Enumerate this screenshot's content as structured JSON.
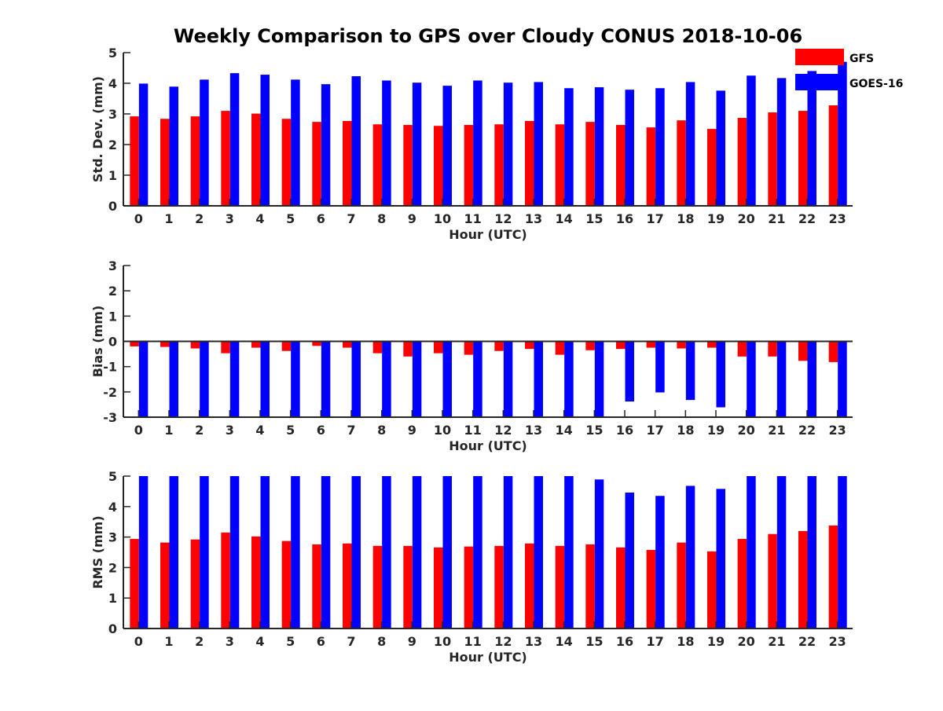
{
  "title": "Weekly Comparison to GPS over Cloudy CONUS 2018-10-06",
  "colors": {
    "GFS": "#ff0000",
    "GOES-16": "#0000ff",
    "axis": "#262626"
  },
  "legend": [
    {
      "name": "GFS",
      "color": "#ff0000"
    },
    {
      "name": "GOES-16",
      "color": "#0000ff"
    }
  ],
  "legend_placement": "top-right, outside the first panel",
  "chart_data": [
    {
      "type": "bar",
      "title": "Weekly Comparison to GPS over Cloudy CONUS 2018-10-06",
      "xlabel": "Hour (UTC)",
      "ylabel": "Std. Dev. (mm)",
      "ylim": [
        0,
        5
      ],
      "yticks": [
        0,
        1,
        2,
        3,
        4,
        5
      ],
      "grid": false,
      "categories": [
        "0",
        "1",
        "2",
        "3",
        "4",
        "5",
        "6",
        "7",
        "8",
        "9",
        "10",
        "11",
        "12",
        "13",
        "14",
        "15",
        "16",
        "17",
        "18",
        "19",
        "20",
        "21",
        "22",
        "23"
      ],
      "series": [
        {
          "name": "GFS",
          "color": "#ff0000",
          "values": [
            2.92,
            2.84,
            2.92,
            3.1,
            3.01,
            2.84,
            2.74,
            2.77,
            2.66,
            2.64,
            2.61,
            2.64,
            2.66,
            2.77,
            2.66,
            2.74,
            2.64,
            2.56,
            2.79,
            2.51,
            2.87,
            3.05,
            3.1,
            3.28
          ]
        },
        {
          "name": "GOES-16",
          "color": "#0000ff",
          "values": [
            3.99,
            3.89,
            4.12,
            4.33,
            4.28,
            4.12,
            3.97,
            4.23,
            4.09,
            4.02,
            3.92,
            4.09,
            4.02,
            4.04,
            3.84,
            3.87,
            3.79,
            3.84,
            4.04,
            3.76,
            4.25,
            4.17,
            4.4,
            4.7
          ]
        }
      ]
    },
    {
      "type": "bar",
      "xlabel": "Hour (UTC)",
      "ylabel": "Bias (mm)",
      "ylim": [
        -3,
        3
      ],
      "yticks": [
        -3,
        -2,
        -1,
        0,
        1,
        2,
        3
      ],
      "grid": false,
      "zero_line": true,
      "categories": [
        "0",
        "1",
        "2",
        "3",
        "4",
        "5",
        "6",
        "7",
        "8",
        "9",
        "10",
        "11",
        "12",
        "13",
        "14",
        "15",
        "16",
        "17",
        "18",
        "19",
        "20",
        "21",
        "22",
        "23"
      ],
      "series": [
        {
          "name": "GFS",
          "color": "#ff0000",
          "values": [
            -0.2,
            -0.22,
            -0.28,
            -0.47,
            -0.25,
            -0.38,
            -0.18,
            -0.25,
            -0.47,
            -0.6,
            -0.47,
            -0.53,
            -0.38,
            -0.3,
            -0.53,
            -0.35,
            -0.3,
            -0.25,
            -0.28,
            -0.25,
            -0.6,
            -0.6,
            -0.77,
            -0.82
          ]
        },
        {
          "name": "GOES-16",
          "color": "#0000ff",
          "values": [
            -3.0,
            -3.0,
            -3.0,
            -3.0,
            -3.0,
            -3.0,
            -3.0,
            -3.0,
            -3.0,
            -3.0,
            -3.0,
            -3.0,
            -3.0,
            -3.0,
            -3.0,
            -2.97,
            -2.38,
            -2.02,
            -2.32,
            -2.61,
            -3.0,
            -3.0,
            -3.0,
            -3.0
          ]
        }
      ]
    },
    {
      "type": "bar",
      "xlabel": "Hour (UTC)",
      "ylabel": "RMS (mm)",
      "ylim": [
        0,
        5
      ],
      "yticks": [
        0,
        1,
        2,
        3,
        4,
        5
      ],
      "grid": false,
      "categories": [
        "0",
        "1",
        "2",
        "3",
        "4",
        "5",
        "6",
        "7",
        "8",
        "9",
        "10",
        "11",
        "12",
        "13",
        "14",
        "15",
        "16",
        "17",
        "18",
        "19",
        "20",
        "21",
        "22",
        "23"
      ],
      "series": [
        {
          "name": "GFS",
          "color": "#ff0000",
          "values": [
            2.94,
            2.82,
            2.92,
            3.15,
            3.02,
            2.87,
            2.76,
            2.79,
            2.71,
            2.71,
            2.66,
            2.69,
            2.71,
            2.79,
            2.71,
            2.76,
            2.66,
            2.58,
            2.82,
            2.53,
            2.94,
            3.1,
            3.2,
            3.38
          ]
        },
        {
          "name": "GOES-16",
          "color": "#0000ff",
          "values": [
            5.0,
            5.0,
            5.0,
            5.0,
            5.0,
            5.0,
            5.0,
            5.0,
            5.0,
            5.0,
            5.0,
            5.0,
            5.0,
            5.0,
            5.0,
            4.89,
            4.46,
            4.35,
            4.68,
            4.58,
            5.0,
            5.0,
            5.0,
            5.0
          ]
        }
      ]
    }
  ]
}
